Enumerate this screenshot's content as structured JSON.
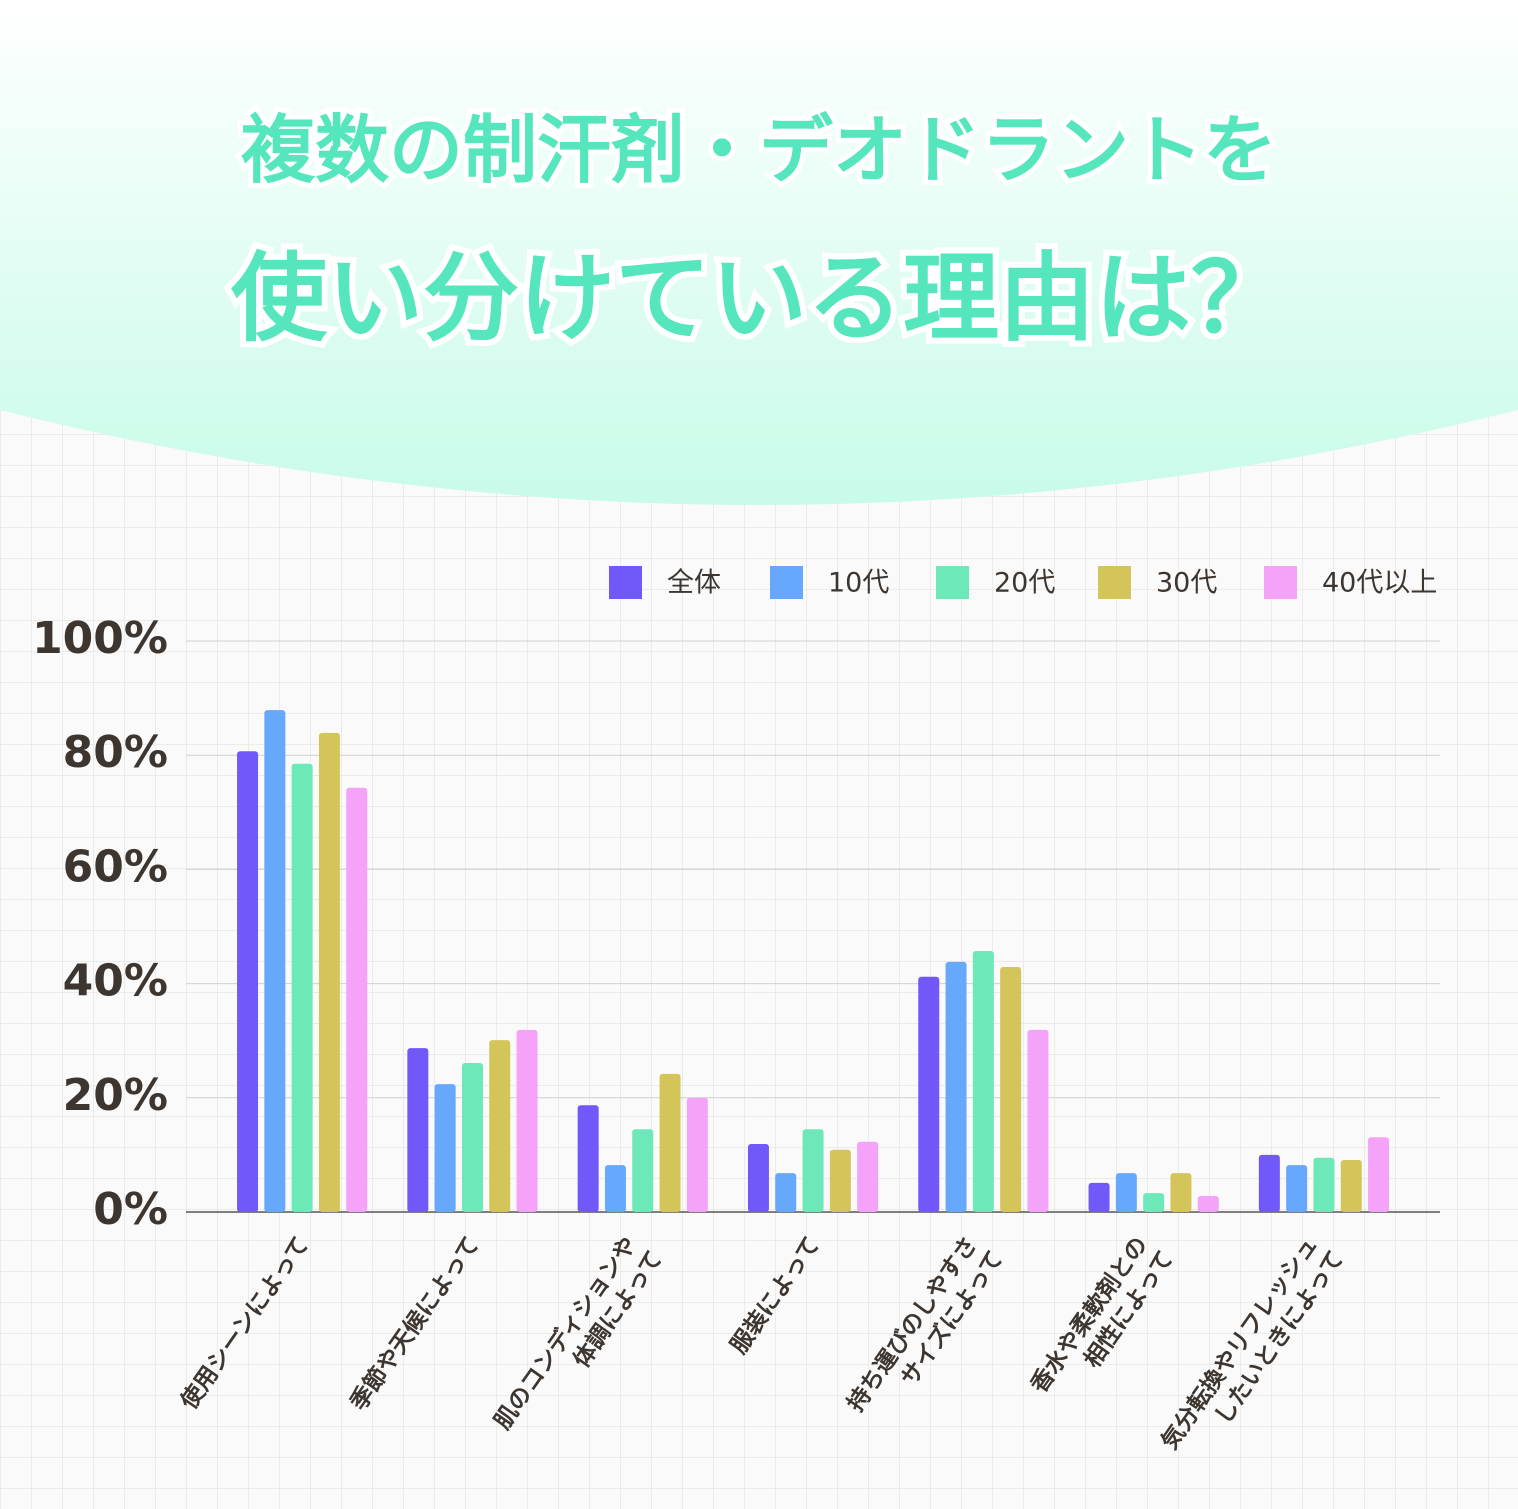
{
  "chart_data": {
    "type": "bar",
    "title": [
      "複数の制汗剤・デオドラントを",
      "使い分けている理由は？"
    ],
    "categories": [
      [
        "使用シーンによって"
      ],
      [
        "季節や天候によって"
      ],
      [
        "肌のコンディションや",
        "体調によって"
      ],
      [
        "服装によって"
      ],
      [
        "持ち運びのしやすさ",
        "サイズによって"
      ],
      [
        "香水や柔軟剤との",
        "相性によって"
      ],
      [
        "気分転換やリフレッシュ",
        "したいときによって"
      ]
    ],
    "series": [
      {
        "name": "全体",
        "color": "#7158f8",
        "values": [
          80.7,
          28.7,
          18.7,
          11.9,
          41.2,
          5.1,
          10.0
        ]
      },
      {
        "name": "10代",
        "color": "#66a8fb",
        "values": [
          87.9,
          22.4,
          8.2,
          6.8,
          43.8,
          6.8,
          8.2
        ]
      },
      {
        "name": "20代",
        "color": "#6de8b9",
        "values": [
          78.5,
          26.1,
          14.5,
          14.5,
          45.7,
          3.3,
          9.5
        ]
      },
      {
        "name": "30代",
        "color": "#d4c55b",
        "values": [
          83.9,
          30.1,
          24.2,
          10.9,
          42.9,
          6.8,
          9.1
        ]
      },
      {
        "name": "40代以上",
        "color": "#f5a3f8",
        "values": [
          74.3,
          31.9,
          20.0,
          12.3,
          31.9,
          2.8,
          13.1
        ]
      }
    ],
    "ylim": [
      0,
      100
    ],
    "yticks": [
      {
        "value": 0,
        "label": "0%"
      },
      {
        "value": 20,
        "label": "20%"
      },
      {
        "value": 40,
        "label": "40%"
      },
      {
        "value": 60,
        "label": "60%"
      },
      {
        "value": 80,
        "label": "80%"
      },
      {
        "value": 100,
        "label": "100%"
      }
    ],
    "grid": true,
    "legend": "top-right"
  }
}
